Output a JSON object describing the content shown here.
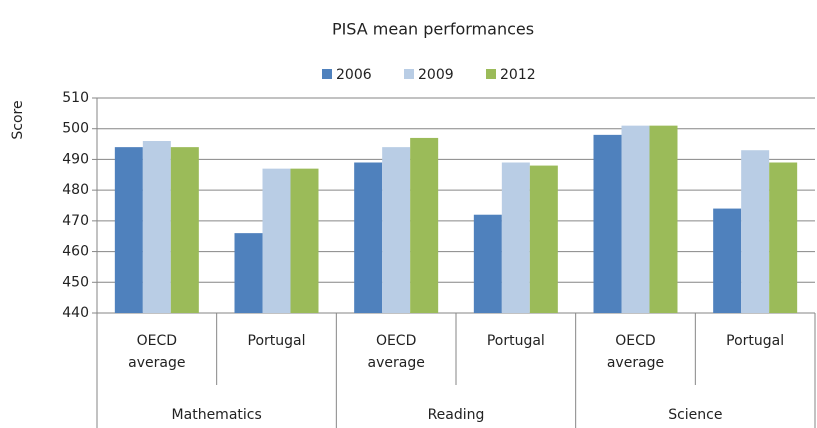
{
  "chart_data": {
    "type": "bar",
    "title": "PISA mean performances",
    "y_label": "Score",
    "categories": [
      "OECD average",
      "Portugal",
      "OECD average",
      "Portugal",
      "OECD average",
      "Portugal"
    ],
    "groups": [
      "Mathematics",
      "Reading",
      "Science"
    ],
    "series": [
      {
        "name": "2006",
        "color": "#4f81bd",
        "values": [
          494,
          466,
          489,
          472,
          498,
          474
        ]
      },
      {
        "name": "2009",
        "color": "#b9cde5",
        "values": [
          496,
          487,
          494,
          489,
          501,
          493
        ]
      },
      {
        "name": "2012",
        "color": "#9bbb59",
        "values": [
          494,
          487,
          497,
          488,
          501,
          489
        ]
      }
    ],
    "ylim": [
      440,
      510
    ],
    "yticks": [
      440,
      450,
      460,
      470,
      480,
      490,
      500,
      510
    ],
    "grid": true,
    "legend": "top"
  }
}
